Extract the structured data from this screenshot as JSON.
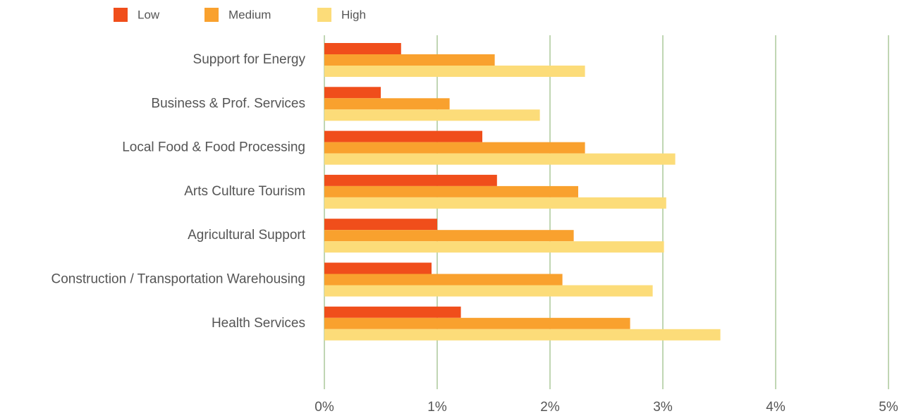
{
  "chart_data": {
    "type": "bar",
    "orientation": "horizontal",
    "categories": [
      "Support for Energy",
      "Business & Prof. Services",
      "Local Food & Food Processing",
      "Arts Culture Tourism",
      "Agricultural Support",
      "Construction / Transportation Warehousing",
      "Health Services"
    ],
    "series": [
      {
        "name": "Low",
        "color": "#f04e1b",
        "values": [
          0.68,
          0.5,
          1.4,
          1.53,
          1.0,
          0.95,
          1.21
        ]
      },
      {
        "name": "Medium",
        "color": "#f9a12e",
        "values": [
          1.51,
          1.11,
          2.31,
          2.25,
          2.21,
          2.11,
          2.71
        ]
      },
      {
        "name": "High",
        "color": "#fcdc79",
        "values": [
          2.31,
          1.91,
          3.11,
          3.03,
          3.01,
          2.91,
          3.51
        ]
      }
    ],
    "xlim": [
      0,
      5
    ],
    "x_ticks": [
      0,
      1,
      2,
      3,
      4,
      5
    ],
    "x_tick_labels": [
      "0%",
      "1%",
      "2%",
      "3%",
      "4%",
      "5%"
    ],
    "title": "",
    "xlabel": "",
    "ylabel": "",
    "grid": "vertical",
    "legend_position": "top-left"
  }
}
